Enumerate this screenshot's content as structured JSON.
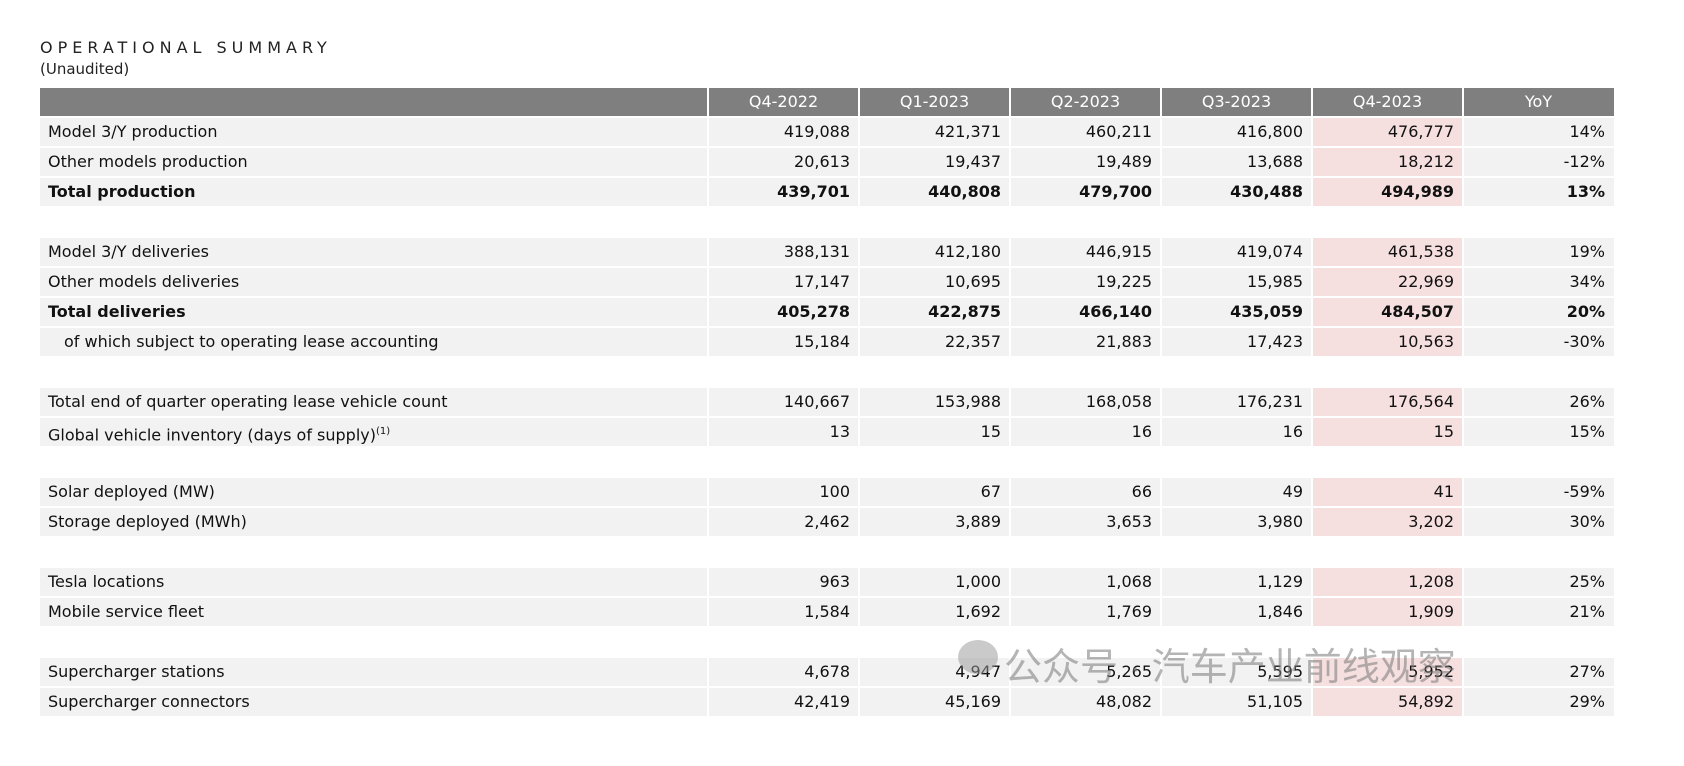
{
  "header": {
    "title": "OPERATIONAL SUMMARY",
    "subtitle": "(Unaudited)"
  },
  "table": {
    "columns": [
      "Q4-2022",
      "Q1-2023",
      "Q2-2023",
      "Q3-2023",
      "Q4-2023",
      "YoY"
    ],
    "highlight_column": 4,
    "groups": [
      [
        {
          "label": "Model 3/Y production",
          "values": [
            "419,088",
            "421,371",
            "460,211",
            "416,800",
            "476,777",
            "14%"
          ]
        },
        {
          "label": "Other models production",
          "values": [
            "20,613",
            "19,437",
            "19,489",
            "13,688",
            "18,212",
            "-12%"
          ]
        },
        {
          "label": "Total production",
          "bold": true,
          "values": [
            "439,701",
            "440,808",
            "479,700",
            "430,488",
            "494,989",
            "13%"
          ]
        }
      ],
      [
        {
          "label": "Model 3/Y deliveries",
          "values": [
            "388,131",
            "412,180",
            "446,915",
            "419,074",
            "461,538",
            "19%"
          ]
        },
        {
          "label": "Other models deliveries",
          "values": [
            "17,147",
            "10,695",
            "19,225",
            "15,985",
            "22,969",
            "34%"
          ]
        },
        {
          "label": "Total deliveries",
          "bold": true,
          "values": [
            "405,278",
            "422,875",
            "466,140",
            "435,059",
            "484,507",
            "20%"
          ]
        },
        {
          "label": "of which subject to operating lease accounting",
          "indent": true,
          "values": [
            "15,184",
            "22,357",
            "21,883",
            "17,423",
            "10,563",
            "-30%"
          ]
        }
      ],
      [
        {
          "label": "Total end of quarter operating lease vehicle count",
          "values": [
            "140,667",
            "153,988",
            "168,058",
            "176,231",
            "176,564",
            "26%"
          ]
        },
        {
          "label": "Global vehicle inventory (days of supply)",
          "sup": "(1)",
          "values": [
            "13",
            "15",
            "16",
            "16",
            "15",
            "15%"
          ]
        }
      ],
      [
        {
          "label": "Solar deployed (MW)",
          "values": [
            "100",
            "67",
            "66",
            "49",
            "41",
            "-59%"
          ]
        },
        {
          "label": "Storage deployed (MWh)",
          "values": [
            "2,462",
            "3,889",
            "3,653",
            "3,980",
            "3,202",
            "30%"
          ]
        }
      ],
      [
        {
          "label": "Tesla locations",
          "values": [
            "963",
            "1,000",
            "1,068",
            "1,129",
            "1,208",
            "25%"
          ]
        },
        {
          "label": "Mobile service fleet",
          "values": [
            "1,584",
            "1,692",
            "1,769",
            "1,846",
            "1,909",
            "21%"
          ]
        }
      ],
      [
        {
          "label": "Supercharger stations",
          "values": [
            "4,678",
            "4,947",
            "5,265",
            "5,595",
            "5,952",
            "27%"
          ]
        },
        {
          "label": "Supercharger connectors",
          "values": [
            "42,419",
            "45,169",
            "48,082",
            "51,105",
            "54,892",
            "29%"
          ]
        }
      ]
    ]
  },
  "watermark": "公众号 · 汽车产业前线观察"
}
